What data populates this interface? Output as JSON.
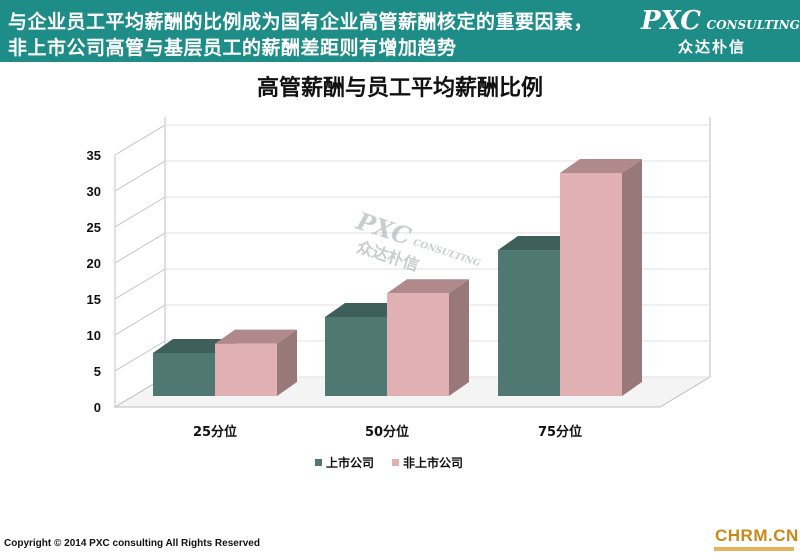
{
  "header": {
    "line1": "与企业员工平均薪酬的比例成为国有企业高管薪酬核定的重要因素，",
    "line2": "非上市公司高管与基层员工的薪酬差距则有增加趋势",
    "brand_en_big": "PXC",
    "brand_en_small": "CONSULTING",
    "brand_cn": "众达朴信"
  },
  "footer": {
    "copyright": "Copyright © 2014  PXC consulting All Rights Reserved",
    "site_badge": "CHRM.CN"
  },
  "watermark": {
    "brand": "PXC",
    "sub": "CONSULTING",
    "cn": "众达朴信"
  },
  "colors": {
    "banner": "#1f8d87",
    "series1": "#4f7873",
    "series2": "#e0b0b2"
  },
  "chart_data": {
    "type": "bar",
    "title": "高管薪酬与员工平均薪酬比例",
    "categories": [
      "25分位",
      "50分位",
      "75分位"
    ],
    "series": [
      {
        "name": "上市公司",
        "values": [
          7.5,
          12.5,
          21.8
        ]
      },
      {
        "name": "非上市公司",
        "values": [
          8.8,
          15.8,
          32.5
        ]
      }
    ],
    "yticks": [
      0,
      5,
      10,
      15,
      20,
      25,
      30,
      35
    ],
    "ylim": [
      0,
      35
    ],
    "grid": true,
    "legend": "bottom",
    "three_d": true
  }
}
